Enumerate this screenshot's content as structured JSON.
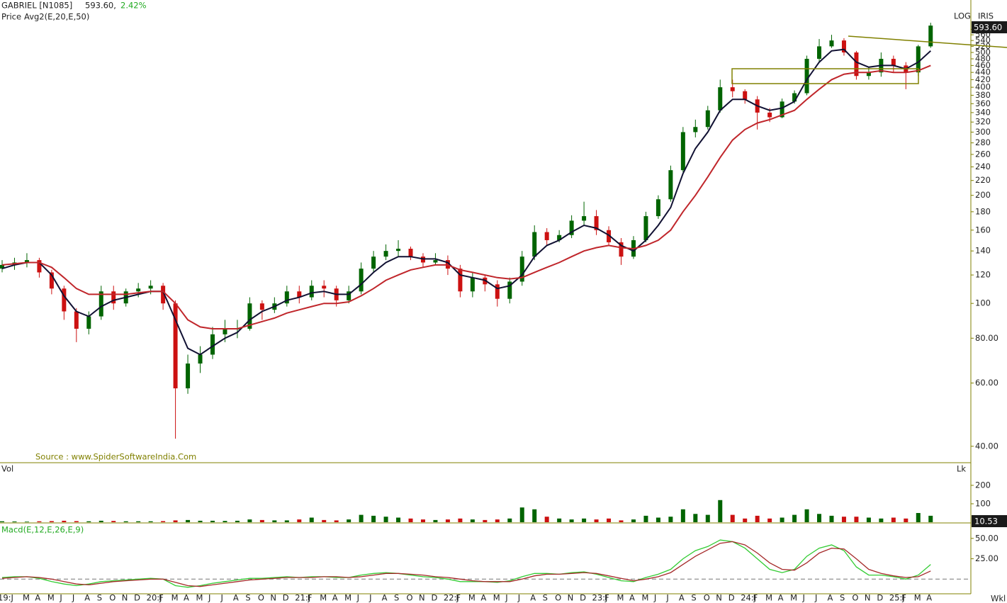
{
  "header": {
    "symbol": "GABRIEL [N1085]",
    "price": "593.60,",
    "change": "2.42%",
    "indicator_label": "Price",
    "indicator": "Avg2(E,20,E,50)",
    "scale": "LOG",
    "style": "IRIS",
    "last_price": "593.60",
    "source": "Source : www.SpiderSoftwareIndia.Com",
    "volume_label": "Vol",
    "volume_unit": "Lk",
    "last_volume": "10.53",
    "macd_label": "Macd(E,12,E,26,E,9)",
    "period": "Wkl"
  },
  "chart_data": [
    {
      "type": "candlestick",
      "log_scale": true,
      "ylim": [
        36,
        700
      ],
      "yticks": [
        {
          "value": 40,
          "label": "40.00"
        },
        {
          "value": 60,
          "label": "60.00"
        },
        {
          "value": 80,
          "label": "80.00"
        },
        100,
        120,
        140,
        160,
        180,
        200,
        220,
        240,
        260,
        280,
        300,
        320,
        340,
        360,
        380,
        400,
        420,
        440,
        460,
        480,
        500,
        520,
        540,
        560,
        580
      ],
      "categories": [
        "19:J",
        null,
        "M",
        "A",
        "M",
        "J",
        "J",
        "A",
        "S",
        "O",
        "N",
        "D",
        "20:J",
        "F",
        "M",
        "A",
        "M",
        "J",
        "J",
        "A",
        "S",
        "O",
        "N",
        "D",
        "21:J",
        "F",
        "M",
        "A",
        "M",
        "J",
        "J",
        "A",
        "S",
        "O",
        "N",
        "D",
        "22:J",
        "F",
        "M",
        "A",
        "M",
        "J",
        "J",
        "A",
        "S",
        "O",
        "N",
        "D",
        "23:J",
        "F",
        "M",
        "A",
        "M",
        "J",
        "J",
        "A",
        "S",
        "O",
        "N",
        "D",
        "24:J",
        "F",
        "M",
        "A",
        "M",
        "J",
        "J",
        "A",
        "S",
        "O",
        "N",
        "D",
        "25:J",
        "F",
        "M",
        "A"
      ],
      "up_color": "#006400",
      "down_color": "#cc1111",
      "open": [
        125,
        128,
        130,
        132,
        122,
        110,
        95,
        85,
        92,
        108,
        100,
        108,
        110,
        112,
        100,
        58,
        68,
        72,
        82,
        85,
        85,
        100,
        96,
        100,
        108,
        104,
        112,
        110,
        102,
        108,
        125,
        135,
        140,
        142,
        135,
        130,
        132,
        125,
        108,
        118,
        113,
        103,
        115,
        135,
        158,
        150,
        155,
        170,
        175,
        160,
        148,
        135,
        150,
        175,
        195,
        235,
        300,
        310,
        345,
        400,
        390,
        370,
        340,
        330,
        365,
        385,
        480,
        520,
        540,
        500,
        430,
        440,
        480,
        460,
        440,
        520
      ],
      "high": [
        132,
        134,
        138,
        134,
        124,
        112,
        97,
        95,
        112,
        112,
        110,
        114,
        116,
        114,
        102,
        72,
        76,
        86,
        90,
        90,
        104,
        102,
        104,
        112,
        112,
        116,
        116,
        112,
        112,
        130,
        140,
        146,
        150,
        144,
        138,
        138,
        136,
        128,
        122,
        120,
        116,
        118,
        140,
        165,
        162,
        160,
        176,
        192,
        182,
        164,
        152,
        154,
        180,
        200,
        242,
        310,
        325,
        355,
        420,
        420,
        395,
        378,
        350,
        372,
        392,
        490,
        545,
        560,
        548,
        505,
        455,
        500,
        490,
        470,
        525,
        605
      ],
      "low": [
        122,
        124,
        126,
        118,
        106,
        90,
        78,
        82,
        90,
        96,
        98,
        104,
        106,
        96,
        42,
        56,
        64,
        70,
        78,
        80,
        84,
        90,
        94,
        98,
        100,
        102,
        104,
        98,
        100,
        106,
        122,
        132,
        135,
        132,
        126,
        128,
        120,
        104,
        104,
        108,
        98,
        100,
        112,
        132,
        145,
        148,
        152,
        165,
        155,
        145,
        128,
        133,
        148,
        172,
        192,
        232,
        290,
        305,
        340,
        375,
        360,
        305,
        320,
        328,
        360,
        380,
        470,
        515,
        490,
        420,
        420,
        428,
        440,
        395,
        430,
        515
      ],
      "close": [
        128,
        130,
        132,
        122,
        110,
        95,
        85,
        92,
        108,
        100,
        108,
        110,
        112,
        100,
        58,
        68,
        72,
        82,
        85,
        85,
        100,
        96,
        100,
        108,
        104,
        112,
        110,
        102,
        108,
        125,
        135,
        140,
        142,
        135,
        130,
        132,
        125,
        108,
        118,
        113,
        103,
        115,
        135,
        158,
        150,
        155,
        170,
        175,
        160,
        148,
        135,
        150,
        175,
        195,
        235,
        300,
        310,
        345,
        400,
        390,
        370,
        340,
        330,
        365,
        385,
        480,
        520,
        540,
        500,
        430,
        440,
        480,
        460,
        440,
        520,
        594
      ],
      "series": [
        {
          "name": "E20",
          "color": "#111133",
          "values": [
            125,
            128,
            130,
            130,
            120,
            105,
            95,
            92,
            98,
            102,
            104,
            106,
            108,
            108,
            90,
            75,
            72,
            76,
            80,
            83,
            90,
            95,
            98,
            102,
            104,
            107,
            108,
            106,
            106,
            113,
            122,
            130,
            135,
            135,
            133,
            133,
            130,
            120,
            118,
            116,
            110,
            112,
            120,
            135,
            145,
            150,
            158,
            165,
            162,
            155,
            145,
            140,
            150,
            165,
            185,
            230,
            270,
            300,
            345,
            370,
            370,
            355,
            345,
            350,
            365,
            420,
            470,
            505,
            510,
            470,
            455,
            460,
            460,
            450,
            470,
            505
          ]
        },
        {
          "name": "E50",
          "color": "#c0262b",
          "values": [
            128,
            129,
            130,
            130,
            126,
            118,
            110,
            106,
            106,
            106,
            106,
            107,
            108,
            108,
            100,
            90,
            86,
            85,
            85,
            85,
            87,
            89,
            91,
            94,
            96,
            98,
            100,
            100,
            101,
            105,
            110,
            116,
            120,
            124,
            126,
            128,
            128,
            124,
            122,
            120,
            118,
            117,
            118,
            122,
            126,
            130,
            135,
            140,
            143,
            145,
            143,
            142,
            145,
            150,
            160,
            180,
            200,
            225,
            255,
            285,
            305,
            318,
            325,
            335,
            345,
            370,
            395,
            420,
            435,
            440,
            440,
            445,
            440,
            440,
            445,
            460
          ]
        }
      ]
    },
    {
      "type": "bar",
      "ylim": [
        0,
        315
      ],
      "yticks": [
        100,
        200
      ],
      "values": [
        5,
        4,
        3,
        5,
        6,
        8,
        6,
        5,
        8,
        7,
        5,
        5,
        5,
        6,
        10,
        12,
        8,
        8,
        7,
        8,
        15,
        12,
        10,
        10,
        15,
        25,
        12,
        10,
        15,
        40,
        35,
        30,
        25,
        20,
        15,
        12,
        15,
        20,
        15,
        12,
        15,
        20,
        80,
        70,
        30,
        20,
        15,
        20,
        15,
        20,
        10,
        15,
        35,
        25,
        30,
        70,
        45,
        40,
        120,
        40,
        20,
        35,
        20,
        25,
        40,
        70,
        45,
        35,
        30,
        30,
        25,
        20,
        25,
        20,
        50,
        35
      ]
    },
    {
      "type": "line",
      "ylim": [
        -18,
        65.5
      ],
      "yticks": [
        {
          "value": 25,
          "label": "25.00"
        },
        {
          "value": 50,
          "label": "50.00"
        }
      ],
      "series": [
        {
          "name": "MACD",
          "color": "#33cc33",
          "values": [
            2,
            3,
            3,
            1,
            -3,
            -6,
            -8,
            -6,
            -3,
            -2,
            -1,
            0,
            1,
            0,
            -8,
            -10,
            -8,
            -5,
            -3,
            -1,
            1,
            1,
            2,
            3,
            2,
            3,
            3,
            2,
            2,
            5,
            7,
            8,
            7,
            5,
            3,
            2,
            0,
            -3,
            -3,
            -3,
            -4,
            -2,
            3,
            7,
            7,
            6,
            8,
            9,
            6,
            2,
            -2,
            -3,
            2,
            6,
            12,
            25,
            35,
            40,
            48,
            46,
            38,
            25,
            12,
            8,
            12,
            28,
            38,
            42,
            35,
            15,
            5,
            5,
            3,
            0,
            5,
            18
          ]
        },
        {
          "name": "Signal",
          "color": "#a52a2a",
          "values": [
            1,
            2,
            3,
            2,
            0,
            -3,
            -6,
            -7,
            -5,
            -3,
            -2,
            -1,
            0,
            0,
            -4,
            -8,
            -9,
            -7,
            -5,
            -3,
            -1,
            0,
            1,
            2,
            2,
            2,
            3,
            3,
            2,
            3,
            5,
            7,
            7,
            6,
            5,
            3,
            2,
            0,
            -2,
            -3,
            -3,
            -3,
            0,
            4,
            6,
            6,
            7,
            8,
            7,
            4,
            1,
            -2,
            0,
            3,
            8,
            18,
            28,
            36,
            44,
            46,
            42,
            32,
            20,
            12,
            11,
            20,
            32,
            38,
            37,
            25,
            12,
            7,
            4,
            2,
            3,
            10
          ]
        }
      ]
    }
  ]
}
